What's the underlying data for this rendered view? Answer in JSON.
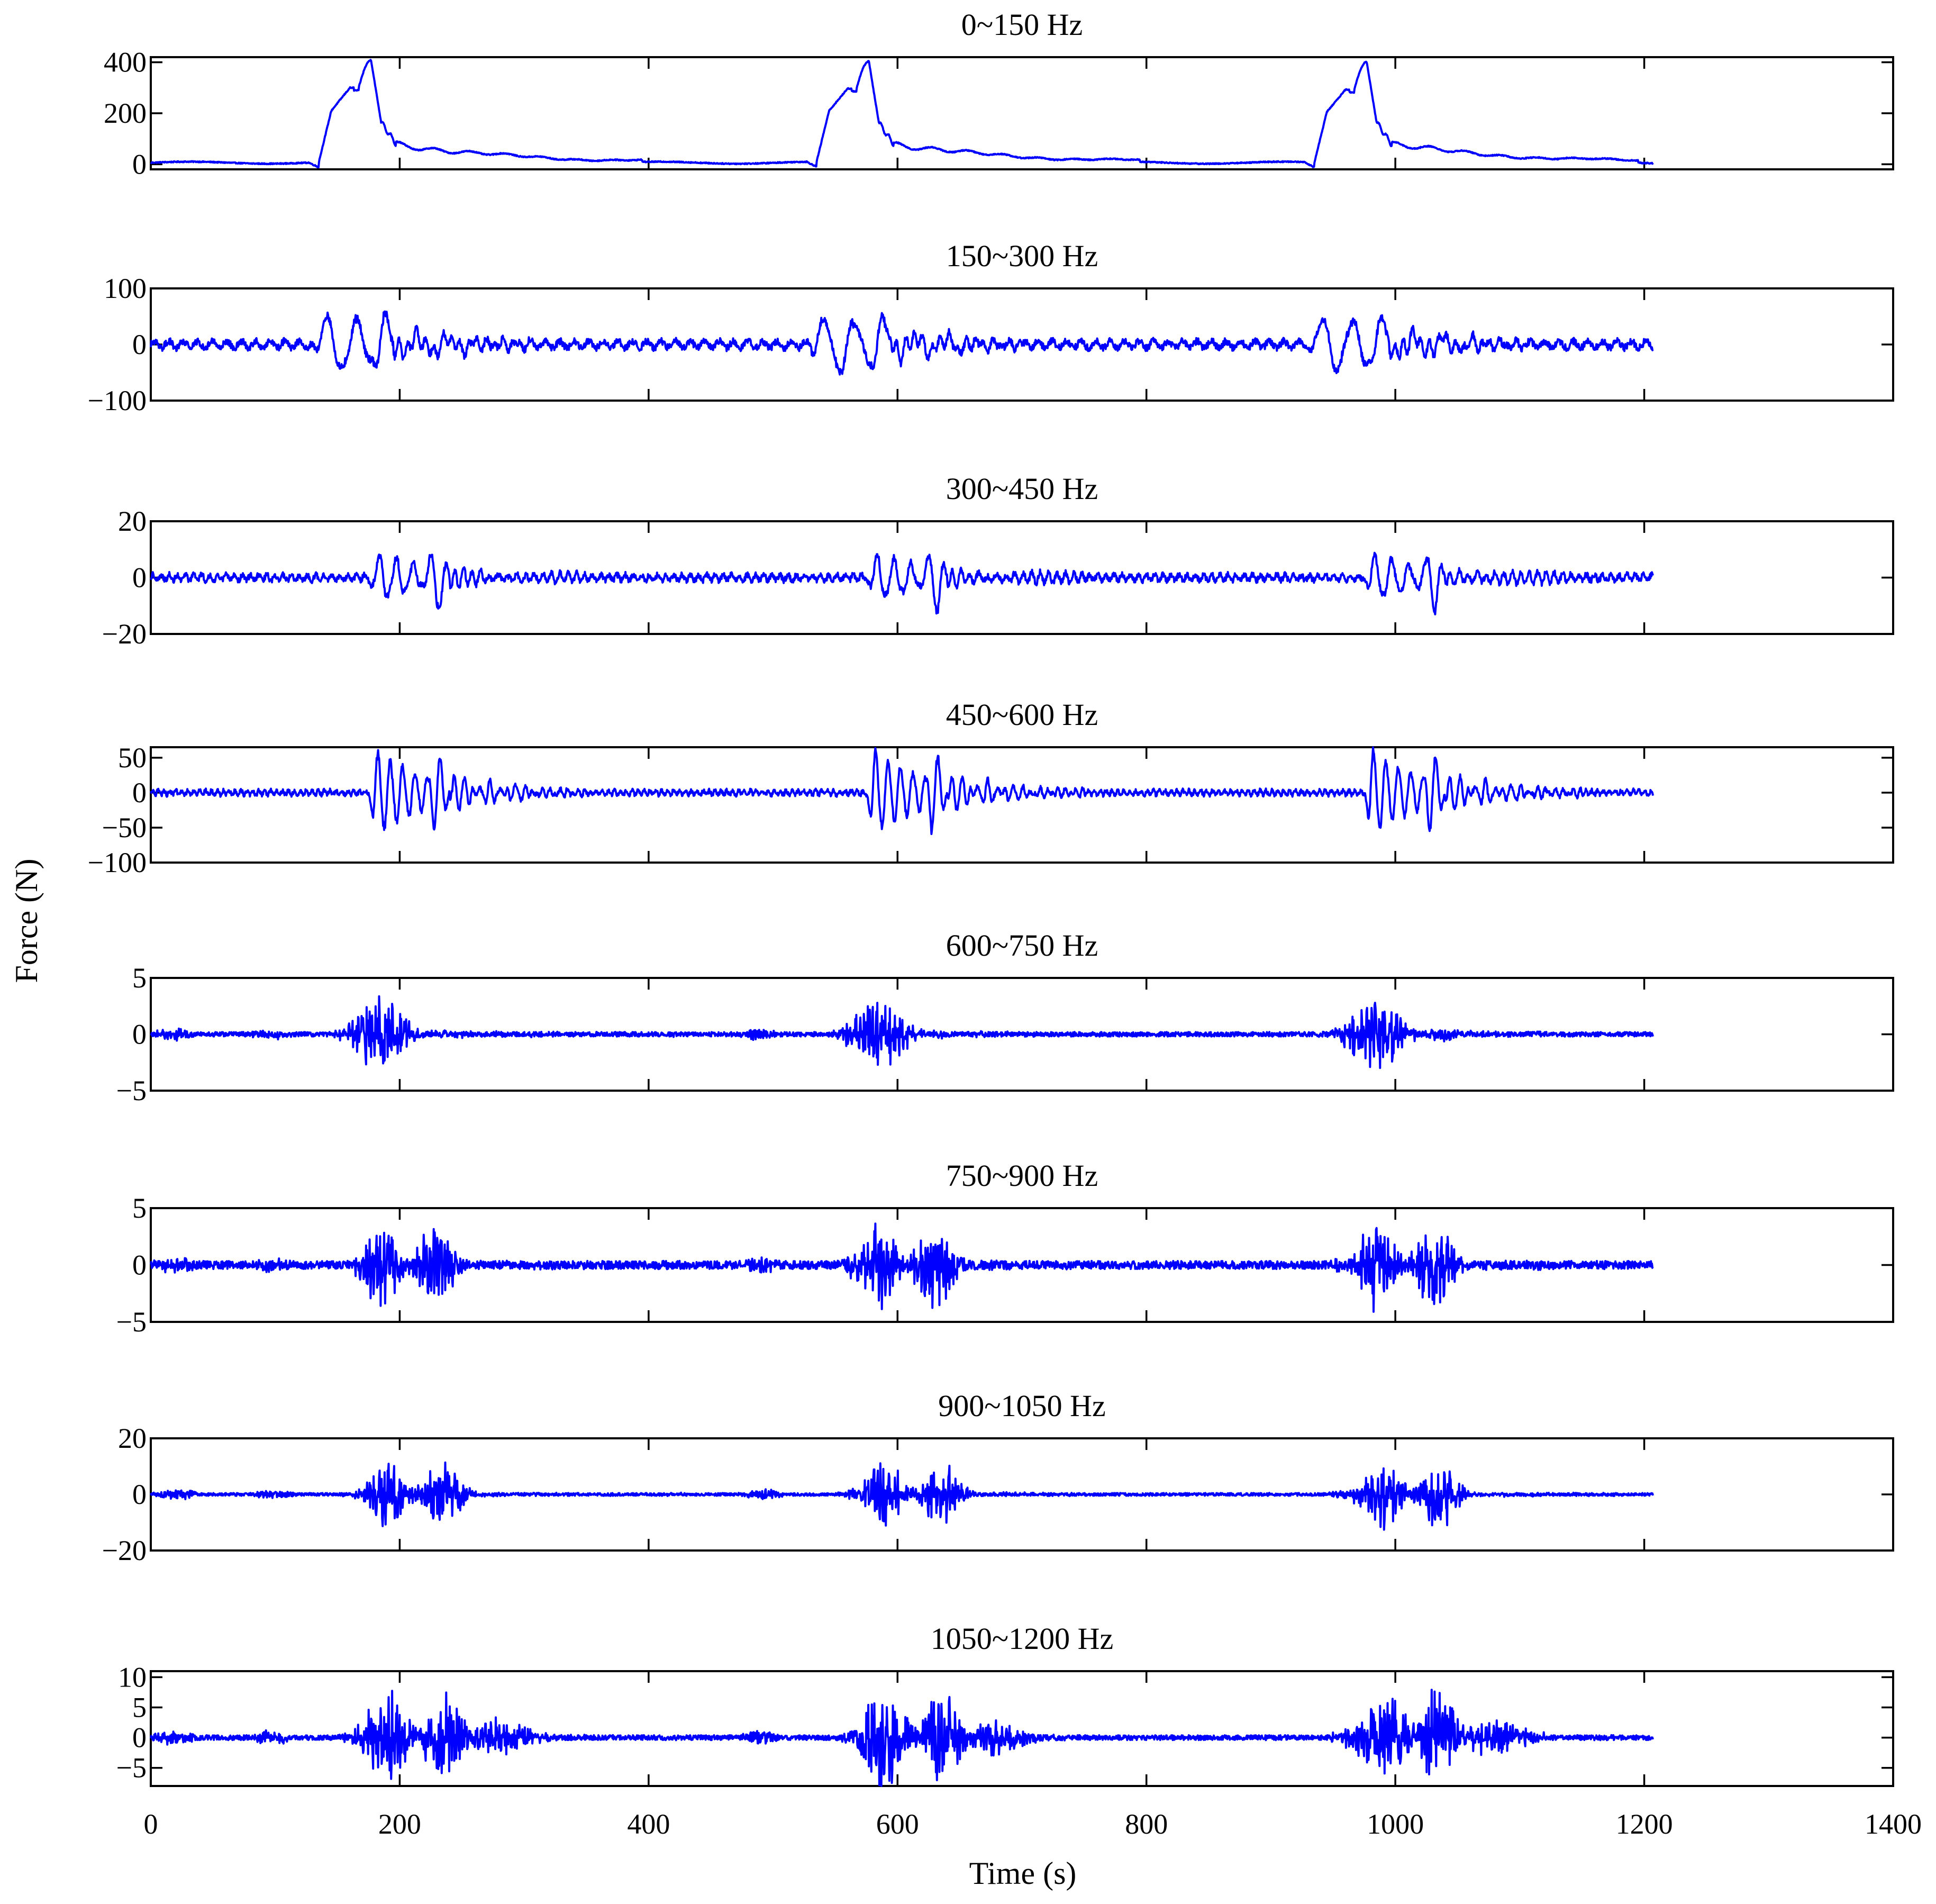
{
  "figure": {
    "ylabel": "Force (N)",
    "xlabel": "Time (s)",
    "line_color": "#0000ff"
  },
  "chart_data": [
    {
      "type": "line",
      "title": "0~150 Hz",
      "xlim": [
        0,
        1400
      ],
      "ylim": [
        -20,
        420
      ],
      "yticks": [
        400,
        200,
        0
      ],
      "yticklabels": [
        "400",
        "200",
        "0"
      ],
      "xticks": [
        0,
        200,
        400,
        600,
        800,
        1000,
        1200,
        1400
      ],
      "grid": false,
      "signal": {
        "kind": "lowband",
        "duration": 1207,
        "events": [
          135,
          535,
          935
        ],
        "peak": 400,
        "baseline": 10
      }
    },
    {
      "type": "line",
      "title": "150~300 Hz",
      "xlim": [
        0,
        1400
      ],
      "ylim": [
        -100,
        100
      ],
      "yticks": [
        100,
        0,
        -100
      ],
      "yticklabels": [
        "100",
        "0",
        "−100"
      ],
      "xticks": [
        0,
        200,
        400,
        600,
        800,
        1000,
        1200,
        1400
      ],
      "grid": false,
      "signal": {
        "kind": "oscillation",
        "duration": 1207,
        "events": [
          135,
          535,
          935
        ],
        "amp": 80,
        "noise": 6,
        "freq": 0.09,
        "decay": 55,
        "shape": "double"
      }
    },
    {
      "type": "line",
      "title": "300~450 Hz",
      "xlim": [
        0,
        1400
      ],
      "ylim": [
        -20,
        20
      ],
      "yticks": [
        20,
        0,
        -20
      ],
      "yticklabels": [
        "20",
        "0",
        "−20"
      ],
      "xticks": [
        0,
        200,
        400,
        600,
        800,
        1000,
        1200,
        1400
      ],
      "grid": false,
      "signal": {
        "kind": "oscillation",
        "duration": 1207,
        "events": [
          180,
          580,
          980
        ],
        "amp": 14,
        "noise": 1,
        "freq": 0.16,
        "decay": 30,
        "shape": "double"
      }
    },
    {
      "type": "line",
      "title": "450~600 Hz",
      "xlim": [
        0,
        1400
      ],
      "ylim": [
        -100,
        65
      ],
      "yticks": [
        50,
        0,
        -50,
        -100
      ],
      "yticklabels": [
        "50",
        "0",
        "−50",
        "−100"
      ],
      "xticks": [
        0,
        200,
        400,
        600,
        800,
        1000,
        1200,
        1400
      ],
      "grid": false,
      "signal": {
        "kind": "oscillation",
        "duration": 1207,
        "events": [
          180,
          580,
          980
        ],
        "amp": 65,
        "noise": 3,
        "freq": 0.22,
        "decay": 45,
        "shape": "single"
      }
    },
    {
      "type": "line",
      "title": "600~750 Hz",
      "xlim": [
        0,
        1400
      ],
      "ylim": [
        -5,
        5
      ],
      "yticks": [
        5,
        0,
        -5
      ],
      "yticklabels": [
        "5",
        "0",
        "−5"
      ],
      "xticks": [
        0,
        200,
        400,
        600,
        800,
        1000,
        1200,
        1400
      ],
      "grid": false,
      "signal": {
        "kind": "burst",
        "duration": 1207,
        "events": [
          175,
          575,
          975
        ],
        "amp": 3.5,
        "noise": 0.2,
        "freq": 0.9,
        "width": 32,
        "shape": "single"
      }
    },
    {
      "type": "line",
      "title": "750~900 Hz",
      "xlim": [
        0,
        1400
      ],
      "ylim": [
        -5,
        5
      ],
      "yticks": [
        5,
        0,
        -5
      ],
      "yticklabels": [
        "5",
        "0",
        "−5"
      ],
      "xticks": [
        0,
        200,
        400,
        600,
        800,
        1000,
        1200,
        1400
      ],
      "grid": false,
      "signal": {
        "kind": "burst",
        "duration": 1207,
        "events": [
          175,
          575,
          975
        ],
        "amp": 4.5,
        "noise": 0.35,
        "freq": 1.1,
        "width": 22,
        "shape": "double"
      }
    },
    {
      "type": "line",
      "title": "900~1050 Hz",
      "xlim": [
        0,
        1400
      ],
      "ylim": [
        -20,
        20
      ],
      "yticks": [
        20,
        0,
        -20
      ],
      "yticklabels": [
        "20",
        "0",
        "−20"
      ],
      "xticks": [
        0,
        200,
        400,
        600,
        800,
        1000,
        1200,
        1400
      ],
      "grid": false,
      "signal": {
        "kind": "burst",
        "duration": 1207,
        "events": [
          180,
          580,
          980
        ],
        "amp": 13,
        "noise": 0.5,
        "freq": 1.3,
        "width": 25,
        "shape": "double"
      }
    },
    {
      "type": "line",
      "title": "1050~1200 Hz",
      "xlim": [
        0,
        1400
      ],
      "ylim": [
        -8,
        11
      ],
      "yticks": [
        10,
        5,
        0,
        -5
      ],
      "yticklabels": [
        "10",
        "5",
        "0",
        "−5"
      ],
      "xticks": [
        0,
        200,
        400,
        600,
        800,
        1000,
        1200,
        1400
      ],
      "xticklabels": [
        "0",
        "200",
        "400",
        "600",
        "800",
        "1000",
        "1200",
        "1400"
      ],
      "grid": false,
      "signal": {
        "kind": "burst",
        "duration": 1207,
        "events": [
          180,
          580,
          980
        ],
        "amp": 9,
        "noise": 0.4,
        "freq": 1.5,
        "width": 28,
        "shape": "triple"
      }
    }
  ]
}
